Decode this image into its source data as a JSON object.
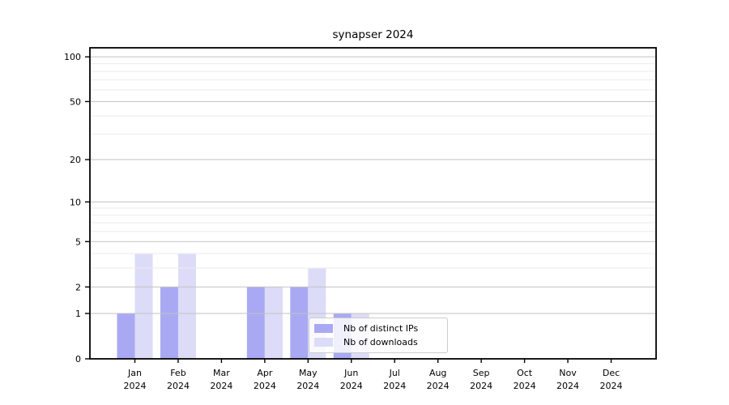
{
  "chart_data": {
    "type": "bar",
    "title": "synapser 2024",
    "categories": [
      "Jan",
      "Feb",
      "Mar",
      "Apr",
      "May",
      "Jun",
      "Jul",
      "Aug",
      "Sep",
      "Oct",
      "Nov",
      "Dec"
    ],
    "category_sublabel": "2024",
    "series": [
      {
        "name": "Nb of distinct IPs",
        "color": "#a9a9f3",
        "values": [
          1,
          2,
          0,
          2,
          2,
          1,
          0,
          0,
          0,
          0,
          0,
          0
        ]
      },
      {
        "name": "Nb of downloads",
        "color": "#dcdcf8",
        "values": [
          4,
          4,
          0,
          2,
          3,
          1,
          0,
          0,
          0,
          0,
          0,
          0
        ]
      }
    ],
    "xlabel": "",
    "ylabel": "",
    "y_axis": {
      "scale": "log10(value+1)",
      "ticks": [
        0,
        1,
        2,
        5,
        10,
        20,
        50,
        100
      ],
      "tick_labels": [
        "0",
        "1",
        "2",
        "5",
        "10",
        "20",
        "50",
        "100"
      ],
      "minor_gridlines": [
        3,
        4,
        6,
        7,
        8,
        9,
        30,
        40,
        60,
        70,
        80,
        90
      ],
      "ylim": [
        0,
        115
      ]
    },
    "grid": "on",
    "grid_over_bars": true,
    "legend_position": "lower center-right inside plot",
    "style": {
      "major_grid_color": "#c2c2c2",
      "minor_grid_color": "#ebebeb",
      "spine_color": "#000000",
      "text_color": "#000000",
      "legend_border_color": "#cccccc",
      "background_color": "#ffffff"
    }
  }
}
